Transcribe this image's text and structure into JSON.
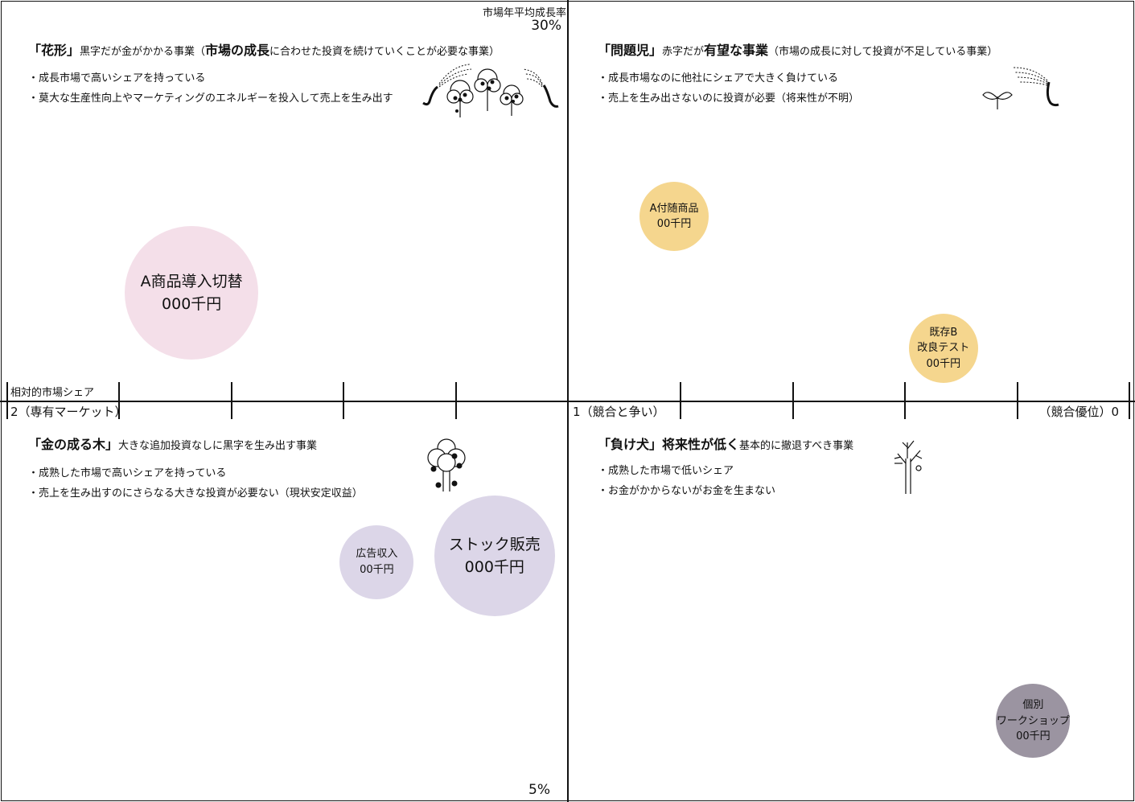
{
  "axes": {
    "y_title": "市場年平均成長率",
    "y_max_label": "30%",
    "y_min_label": "5%",
    "x_title": "相対的市場シェア",
    "x_left_label": "2（専有マーケット）",
    "x_mid_label": "1（競合と争い）",
    "x_right_label": "（競合優位）0"
  },
  "quadrants": {
    "star": {
      "title_bracket": "「花形」",
      "title_rest": "黒字だが金がかかる事業（",
      "title_emph": "市場の成長",
      "title_tail": "に合わせた投資を続けていくことが必要な事業）",
      "bullets": [
        "・成長市場で高いシェアを持っている",
        "・莫大な生産性向上やマーケティングのエネルギーを投入して売上を生み出す"
      ],
      "icon": "sprinkler-trees-icon"
    },
    "question": {
      "title_bracket": "「問題児」",
      "title_rest": "赤字だが",
      "title_emph": "有望な事業",
      "title_tail": "（市場の成長に対して投資が不足している事業）",
      "bullets": [
        "・成長市場なのに他社にシェアで大きく負けている",
        "・売上を生み出さないのに投資が必要（将来性が不明）"
      ],
      "icon": "sprout-sprinkler-icon"
    },
    "cow": {
      "title_bracket": "「金の成る木」",
      "title_rest": "大きな追加投資なしに黒字を生み出す事業",
      "bullets": [
        "・成熟した市場で高いシェアを持っている",
        "・売上を生み出すのにさらなる大きな投資が必要ない（現状安定収益）"
      ],
      "icon": "fruit-tree-icon"
    },
    "dog": {
      "title_bracket": "「負け犬」",
      "title_emph": "将来性が低く",
      "title_rest": "基本的に撤退すべき事業",
      "bullets": [
        "・成熟した市場で低いシェア",
        "・お金がかからないがお金を生まない"
      ],
      "icon": "bare-tree-icon"
    }
  },
  "chart_data": {
    "type": "scatter",
    "xlabel": "相対的市場シェア",
    "ylabel": "市場年平均成長率",
    "xlim": [
      2,
      0
    ],
    "ylim": [
      5,
      30
    ],
    "x_ticks": [
      2,
      1,
      0
    ],
    "y_ticks": [
      5,
      30
    ],
    "grid": false,
    "points": [
      {
        "label_lines": [
          "A商品導入切替",
          "000千円"
        ],
        "x": 1.67,
        "y": 21.2,
        "color": "#f4dfe9"
      },
      {
        "label_lines": [
          "A付随商品",
          "00千円"
        ],
        "x": 0.81,
        "y": 23.7,
        "color": "#f5d68e"
      },
      {
        "label_lines": [
          "既存B",
          "改良テスト",
          "00千円"
        ],
        "x": 0.33,
        "y": 19.4,
        "color": "#f5d68e"
      },
      {
        "label_lines": [
          "広告収入",
          "00千円"
        ],
        "x": 1.34,
        "y": 12.4,
        "color": "#dcd6e8"
      },
      {
        "label_lines": [
          "ストック販売",
          "000千円"
        ],
        "x": 1.13,
        "y": 12.6,
        "color": "#dcd6e8"
      },
      {
        "label_lines": [
          "個別",
          "ワークショップ",
          "00千円"
        ],
        "x": 0.17,
        "y": 7.2,
        "color": "#9b94a1"
      }
    ]
  }
}
